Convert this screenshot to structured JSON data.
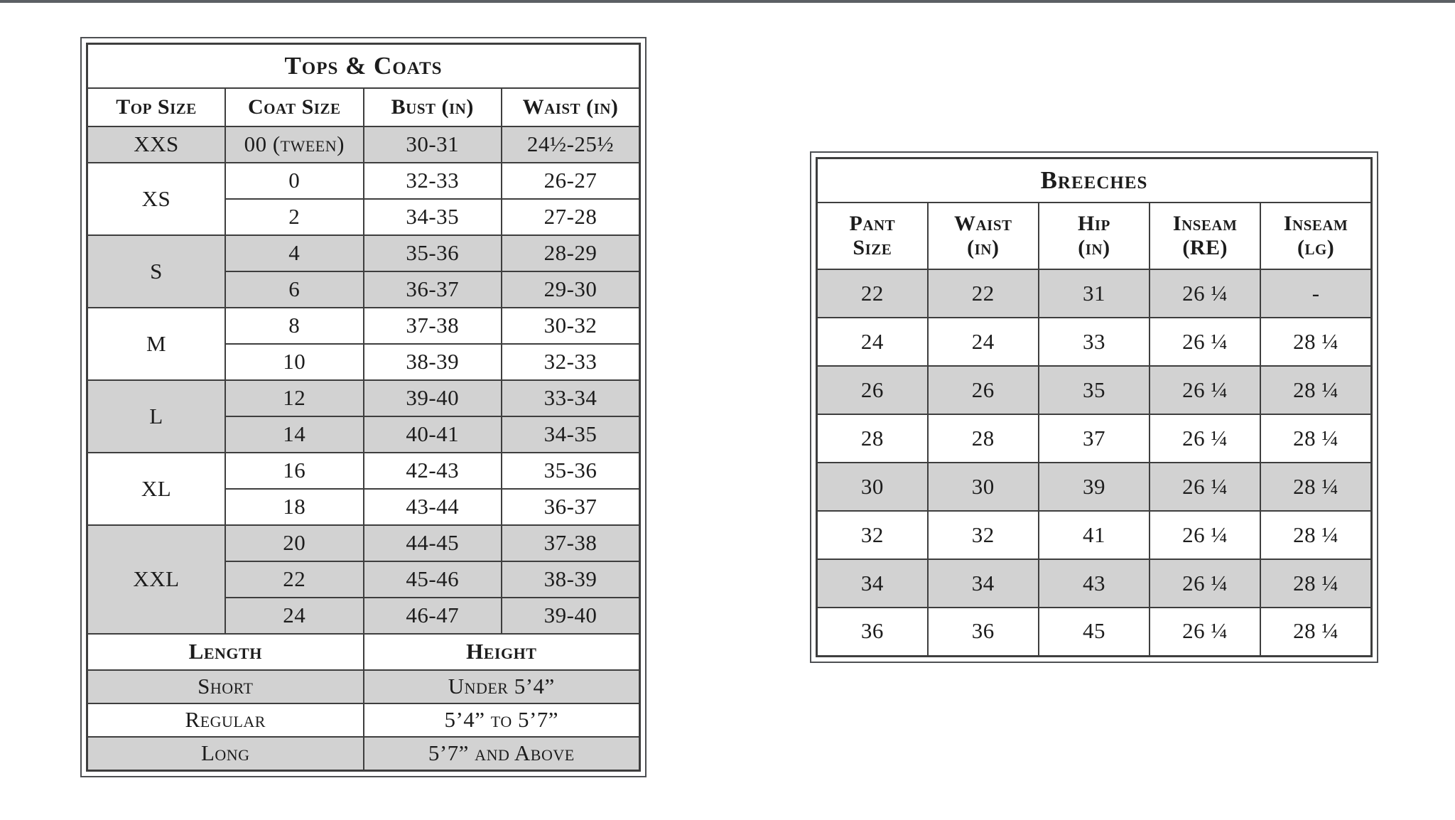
{
  "page": {
    "top_bar_color": "#5c6064",
    "background": "#ffffff",
    "shade_color": "#d2d2d2",
    "border_color": "#3e3e3e"
  },
  "tables": [
    {
      "id": "tops-coats",
      "title": "Tops & Coats",
      "columns": 4,
      "header": [
        "Top Size",
        "Coat Size",
        "Bust (in)",
        "Waist (in)"
      ],
      "rows": [
        {
          "shade": true,
          "cells": [
            "XXS",
            "00 (tween)",
            "30-31",
            "24½-25½"
          ]
        },
        {
          "shade": false,
          "cells": [
            {
              "t": "XS",
              "rs": 2
            },
            "0",
            "32-33",
            "26-27"
          ]
        },
        {
          "shade": false,
          "cells": [
            "2",
            "34-35",
            "27-28"
          ]
        },
        {
          "shade": true,
          "cells": [
            {
              "t": "S",
              "rs": 2
            },
            "4",
            "35-36",
            "28-29"
          ]
        },
        {
          "shade": true,
          "cells": [
            "6",
            "36-37",
            "29-30"
          ]
        },
        {
          "shade": false,
          "cells": [
            {
              "t": "M",
              "rs": 2
            },
            "8",
            "37-38",
            "30-32"
          ]
        },
        {
          "shade": false,
          "cells": [
            "10",
            "38-39",
            "32-33"
          ]
        },
        {
          "shade": true,
          "cells": [
            {
              "t": "L",
              "rs": 2
            },
            "12",
            "39-40",
            "33-34"
          ]
        },
        {
          "shade": true,
          "cells": [
            "14",
            "40-41",
            "34-35"
          ]
        },
        {
          "shade": false,
          "cells": [
            {
              "t": "XL",
              "rs": 2
            },
            "16",
            "42-43",
            "35-36"
          ]
        },
        {
          "shade": false,
          "cells": [
            "18",
            "43-44",
            "36-37"
          ]
        },
        {
          "shade": true,
          "cells": [
            {
              "t": "XXL",
              "rs": 3
            },
            "20",
            "44-45",
            "37-38"
          ]
        },
        {
          "shade": true,
          "cells": [
            "22",
            "45-46",
            "38-39"
          ]
        },
        {
          "shade": true,
          "cells": [
            "24",
            "46-47",
            "39-40"
          ]
        },
        {
          "shade": false,
          "cells": [
            {
              "t": "Length",
              "cs": 2,
              "b": true
            },
            {
              "t": "Height",
              "cs": 2,
              "b": true
            }
          ]
        },
        {
          "shade": true,
          "cls": "r-foot",
          "cells": [
            {
              "t": "Short",
              "cs": 2
            },
            {
              "t": "Under 5’4”",
              "cs": 2
            }
          ]
        },
        {
          "shade": false,
          "cls": "r-foot",
          "cells": [
            {
              "t": "Regular",
              "cs": 2
            },
            {
              "t": "5’4” to 5’7”",
              "cs": 2
            }
          ]
        },
        {
          "shade": true,
          "cls": "r-foot",
          "cells": [
            {
              "t": "Long",
              "cs": 2
            },
            {
              "t": "5’7” and Above",
              "cs": 2
            }
          ]
        }
      ]
    },
    {
      "id": "breeches",
      "title": "Breeches",
      "columns": 5,
      "header": [
        "Pant\nSize",
        "Waist\n(in)",
        "Hip\n(in)",
        "Inseam\n(RE)",
        "Inseam\n(lg)"
      ],
      "rows": [
        {
          "shade": true,
          "cells": [
            "22",
            "22",
            "31",
            "26 ¼",
            "-"
          ]
        },
        {
          "shade": false,
          "cells": [
            "24",
            "24",
            "33",
            "26 ¼",
            "28 ¼"
          ]
        },
        {
          "shade": true,
          "cells": [
            "26",
            "26",
            "35",
            "26 ¼",
            "28 ¼"
          ]
        },
        {
          "shade": false,
          "cells": [
            "28",
            "28",
            "37",
            "26 ¼",
            "28 ¼"
          ]
        },
        {
          "shade": true,
          "cells": [
            "30",
            "30",
            "39",
            "26 ¼",
            "28 ¼"
          ]
        },
        {
          "shade": false,
          "cells": [
            "32",
            "32",
            "41",
            "26 ¼",
            "28 ¼"
          ]
        },
        {
          "shade": true,
          "cells": [
            "34",
            "34",
            "43",
            "26 ¼",
            "28 ¼"
          ]
        },
        {
          "shade": false,
          "cells": [
            "36",
            "36",
            "45",
            "26 ¼",
            "28 ¼"
          ]
        }
      ]
    }
  ]
}
